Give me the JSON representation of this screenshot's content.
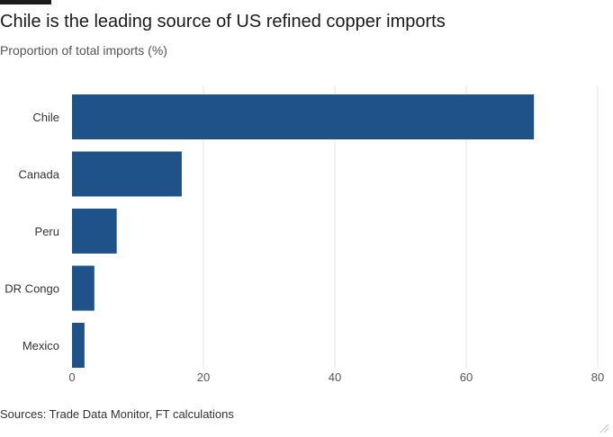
{
  "header": {
    "title": "Chile is the leading source of US refined copper imports",
    "subtitle": "Proportion of total imports (%)"
  },
  "footer": {
    "source": "Sources: Trade Data Monitor, FT calculations"
  },
  "colors": {
    "bar": "#1f5289",
    "grid": "#e6e6e6",
    "axis_text": "#555555"
  },
  "chart_data": {
    "type": "bar",
    "orientation": "horizontal",
    "title": "Chile is the leading source of US refined copper imports",
    "subtitle": "Proportion of total imports (%)",
    "categories": [
      "Chile",
      "Canada",
      "Peru",
      "DR Congo",
      "Mexico"
    ],
    "values": [
      70.3,
      16.7,
      6.8,
      3.4,
      1.9
    ],
    "xlim": [
      0,
      80
    ],
    "xticks": [
      0,
      20,
      40,
      60,
      80
    ],
    "xlabel": "",
    "ylabel": "",
    "grid": true
  }
}
